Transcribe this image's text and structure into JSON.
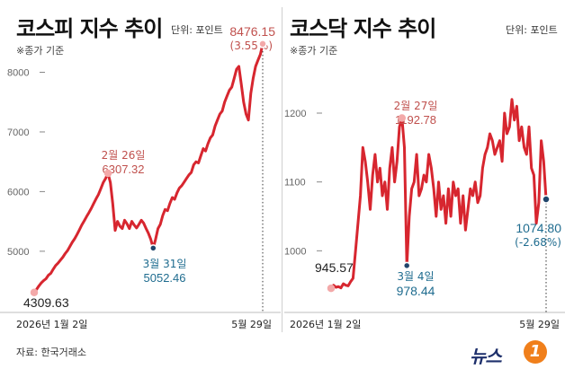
{
  "colors": {
    "line": "#d7262f",
    "low_label": "#1f6c8f",
    "high_label": "#c0504d",
    "grid": "#e6e6e6"
  },
  "source": "자료: 한국거래소",
  "logo": {
    "text": "뉴스",
    "badge": "1"
  },
  "kospi": {
    "title": "코스피 지수 추이",
    "unit": "단위: 포인트",
    "note": "※종가 기준",
    "x_start": "2026년 1월 2일",
    "x_end": "5월 29일",
    "start_value": "4309.63",
    "peak_date": "2월 26일",
    "peak_value": "6307.32",
    "low_date": "3월 31일",
    "low_value": "5052.46",
    "end_value": "8476.15",
    "end_change": "(3.55%)"
  },
  "kosdaq": {
    "title": "코스닥 지수 추이",
    "unit": "단위: 포인트",
    "note": "※종가 기준",
    "x_start": "2026년 1월 2일",
    "x_end": "5월 29일",
    "start_value": "945.57",
    "peak_date": "2월 27일",
    "peak_value": "1192.78",
    "low_date": "3월 4일",
    "low_value": "978.44",
    "end_value": "1074.80",
    "end_change": "(-2.68%)"
  },
  "chart_data": [
    {
      "type": "line",
      "title": "코스피 지수 추이",
      "ylabel": "단위: 포인트",
      "ylim": [
        4200,
        8700
      ],
      "yticks": [
        5000,
        6000,
        7000,
        8000
      ],
      "grid": false,
      "x_start": "2026-01-02",
      "x_end": "2026-05-29",
      "values": [
        4309.63,
        4360,
        4420,
        4470,
        4510,
        4540,
        4600,
        4630,
        4700,
        4760,
        4800,
        4850,
        4900,
        4960,
        5010,
        5080,
        5150,
        5210,
        5280,
        5360,
        5440,
        5510,
        5580,
        5650,
        5720,
        5800,
        5880,
        5950,
        6050,
        6150,
        6220,
        6307.32,
        6150,
        5800,
        5350,
        5500,
        5420,
        5380,
        5520,
        5460,
        5380,
        5500,
        5440,
        5390,
        5450,
        5520,
        5470,
        5380,
        5300,
        5200,
        5052.46,
        5200,
        5380,
        5450,
        5600,
        5700,
        5680,
        5800,
        5900,
        5870,
        5980,
        6060,
        6100,
        6160,
        6220,
        6280,
        6320,
        6450,
        6500,
        6480,
        6600,
        6720,
        6680,
        6800,
        6900,
        6950,
        7100,
        7200,
        7300,
        7350,
        7500,
        7600,
        7700,
        7750,
        7900,
        8050,
        8100,
        7800,
        7500,
        7300,
        7200,
        7650,
        7900,
        8100,
        8200,
        8300,
        8476.15
      ],
      "annotations": [
        {
          "label": "4309.63",
          "x": "2026-01-02",
          "y": 4309.63
        },
        {
          "label": "2월 26일 6307.32",
          "x": "2026-02-26",
          "y": 6307.32
        },
        {
          "label": "3월 31일 5052.46",
          "x": "2026-03-31",
          "y": 5052.46
        },
        {
          "label": "8476.15 (3.55%)",
          "x": "2026-05-29",
          "y": 8476.15
        }
      ]
    },
    {
      "type": "line",
      "title": "코스닥 지수 추이",
      "ylabel": "단위: 포인트",
      "ylim": [
        930,
        1230
      ],
      "yticks": [
        1000,
        1100,
        1200
      ],
      "grid": false,
      "x_start": "2026-01-02",
      "x_end": "2026-05-29",
      "values": [
        945.57,
        950,
        947,
        948,
        946,
        952,
        950,
        949,
        955,
        960,
        1000,
        1040,
        1080,
        1150,
        1130,
        1100,
        1060,
        1110,
        1140,
        1100,
        1120,
        1080,
        1100,
        1060,
        1120,
        1150,
        1100,
        1130,
        1180,
        1192.78,
        1150,
        978.44,
        1050,
        1090,
        1100,
        1140,
        1080,
        1090,
        1110,
        1100,
        1140,
        1120,
        1090,
        1050,
        1100,
        1060,
        1080,
        1040,
        1090,
        1050,
        1100,
        1080,
        1090,
        1040,
        1080,
        1030,
        1060,
        1090,
        1080,
        1100,
        1070,
        1080,
        1120,
        1140,
        1150,
        1170,
        1160,
        1140,
        1150,
        1160,
        1130,
        1200,
        1170,
        1180,
        1220,
        1190,
        1210,
        1160,
        1180,
        1150,
        1140,
        1180,
        1120,
        1110,
        1040,
        1070,
        1160,
        1130,
        1074.8
      ],
      "annotations": [
        {
          "label": "945.57",
          "x": "2026-01-02",
          "y": 945.57
        },
        {
          "label": "2월 27일 1192.78",
          "x": "2026-02-27",
          "y": 1192.78
        },
        {
          "label": "3월 4일 978.44",
          "x": "2026-03-04",
          "y": 978.44
        },
        {
          "label": "1074.80 (-2.68%)",
          "x": "2026-05-29",
          "y": 1074.8
        }
      ]
    }
  ]
}
